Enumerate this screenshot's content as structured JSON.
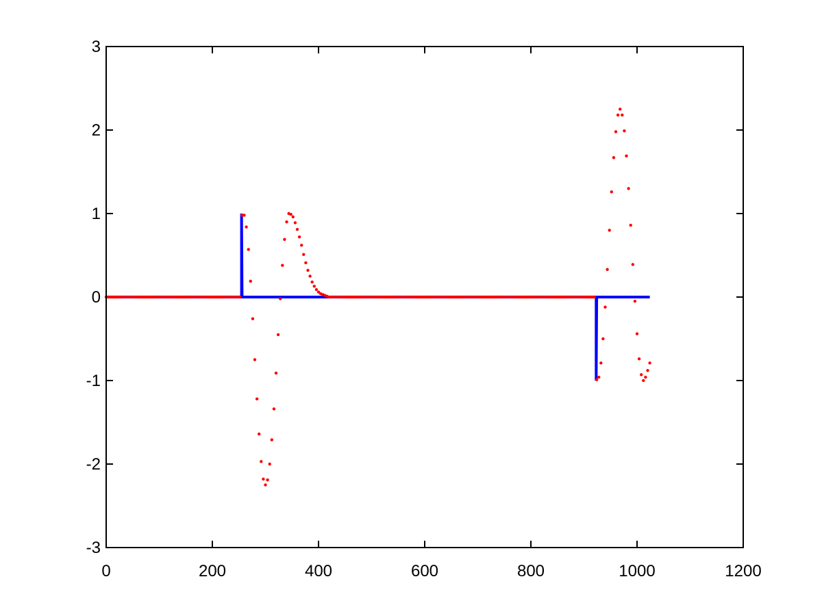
{
  "chart_data": {
    "type": "line",
    "xlim": [
      0,
      1200
    ],
    "xticks": [
      0,
      200,
      400,
      600,
      800,
      1000,
      1200
    ],
    "ylim": [
      -3,
      3
    ],
    "yticks": [
      -3,
      -2,
      -1,
      0,
      1,
      2,
      3
    ],
    "grid": false,
    "box": true,
    "series": [
      {
        "color": "#0000ff",
        "style": "line",
        "x": [
          0,
          255,
          255,
          256,
          923,
          923,
          924,
          1024
        ],
        "values": [
          0,
          0,
          1,
          0,
          0,
          -1,
          0,
          0
        ]
      },
      {
        "color": "#ff0000",
        "style": "dots",
        "x": [
          0,
          4,
          8,
          12,
          16,
          20,
          24,
          28,
          32,
          36,
          40,
          44,
          48,
          52,
          56,
          60,
          64,
          68,
          72,
          76,
          80,
          84,
          88,
          92,
          96,
          100,
          104,
          108,
          112,
          116,
          120,
          124,
          128,
          132,
          136,
          140,
          144,
          148,
          152,
          156,
          160,
          164,
          168,
          172,
          176,
          180,
          184,
          188,
          192,
          196,
          200,
          204,
          208,
          212,
          216,
          220,
          224,
          228,
          232,
          236,
          240,
          244,
          248,
          252,
          256,
          260,
          264,
          268,
          272,
          276,
          280,
          284,
          288,
          292,
          296,
          300,
          304,
          308,
          312,
          316,
          320,
          324,
          328,
          332,
          336,
          340,
          344,
          348,
          352,
          356,
          360,
          364,
          368,
          372,
          376,
          380,
          384,
          388,
          392,
          396,
          400,
          404,
          408,
          412,
          416,
          420,
          424,
          428,
          432,
          436,
          440,
          444,
          448,
          452,
          456,
          460,
          464,
          468,
          472,
          476,
          480,
          484,
          488,
          492,
          496,
          500,
          504,
          508,
          512,
          516,
          520,
          524,
          528,
          532,
          536,
          540,
          544,
          548,
          552,
          556,
          560,
          564,
          568,
          572,
          576,
          580,
          584,
          588,
          592,
          596,
          600,
          604,
          608,
          612,
          616,
          620,
          624,
          628,
          632,
          636,
          640,
          644,
          648,
          652,
          656,
          660,
          664,
          668,
          672,
          676,
          680,
          684,
          688,
          692,
          696,
          700,
          704,
          708,
          712,
          716,
          720,
          724,
          728,
          732,
          736,
          740,
          744,
          748,
          752,
          756,
          760,
          764,
          768,
          772,
          776,
          780,
          784,
          788,
          792,
          796,
          800,
          804,
          808,
          812,
          816,
          820,
          824,
          828,
          832,
          836,
          840,
          844,
          848,
          852,
          856,
          860,
          864,
          868,
          872,
          876,
          880,
          884,
          888,
          892,
          896,
          900,
          904,
          908,
          912,
          916,
          920,
          924,
          928,
          932,
          936,
          940,
          944,
          948,
          952,
          956,
          960,
          964,
          968,
          972,
          976,
          980,
          984,
          988,
          992,
          996,
          1000,
          1004,
          1008,
          1012,
          1016,
          1020,
          1024
        ],
        "values": [
          0,
          0,
          0,
          0,
          0,
          0,
          0,
          0,
          0,
          0,
          0,
          0,
          0,
          0,
          0,
          0,
          0,
          0,
          0,
          0,
          0,
          0,
          0,
          0,
          0,
          0,
          0,
          0,
          0,
          0,
          0,
          0,
          0,
          0,
          0,
          0,
          0,
          0,
          0,
          0,
          0,
          0,
          0,
          0,
          0,
          0,
          0,
          0,
          0,
          0,
          0,
          0,
          0,
          0,
          0,
          0,
          0,
          0,
          0,
          0,
          0,
          0,
          0,
          0,
          0.98,
          0.98,
          0.84,
          0.57,
          0.19,
          -0.26,
          -0.75,
          -1.22,
          -1.64,
          -1.97,
          -2.18,
          -2.25,
          -2.19,
          -2.0,
          -1.71,
          -1.34,
          -0.91,
          -0.45,
          -0.02,
          0.38,
          0.69,
          0.9,
          1.0,
          0.99,
          0.96,
          0.89,
          0.81,
          0.72,
          0.62,
          0.51,
          0.41,
          0.32,
          0.25,
          0.18,
          0.13,
          0.09,
          0.06,
          0.04,
          0.03,
          0.02,
          0.01,
          0,
          0,
          0,
          0,
          0,
          0,
          0,
          0,
          0,
          0,
          0,
          0,
          0,
          0,
          0,
          0,
          0,
          0,
          0,
          0,
          0,
          0,
          0,
          0,
          0,
          0,
          0,
          0,
          0,
          0,
          0,
          0,
          0,
          0,
          0,
          0,
          0,
          0,
          0,
          0,
          0,
          0,
          0,
          0,
          0,
          0,
          0,
          0,
          0,
          0,
          0,
          0,
          0,
          0,
          0,
          0,
          0,
          0,
          0,
          0,
          0,
          0,
          0,
          0,
          0,
          0,
          0,
          0,
          0,
          0,
          0,
          0,
          0,
          0,
          0,
          0,
          0,
          0,
          0,
          0,
          0,
          0,
          0,
          0,
          0,
          0,
          0,
          0,
          0,
          0,
          0,
          0,
          0,
          0,
          0,
          0,
          0,
          0,
          0,
          0,
          0,
          0,
          0,
          0,
          0,
          0,
          0,
          0,
          0,
          0,
          0,
          0,
          0,
          0,
          0,
          0,
          0,
          0,
          0,
          0,
          0,
          0,
          0,
          0,
          0,
          0,
          -0.99,
          -0.96,
          -0.79,
          -0.5,
          -0.12,
          0.33,
          0.8,
          1.26,
          1.67,
          1.98,
          2.18,
          2.25,
          2.18,
          1.99,
          1.69,
          1.3,
          0.86,
          0.39,
          -0.05,
          -0.44,
          -0.74,
          -0.93,
          -1.0,
          -0.96,
          -0.88,
          -0.79
        ]
      }
    ]
  }
}
